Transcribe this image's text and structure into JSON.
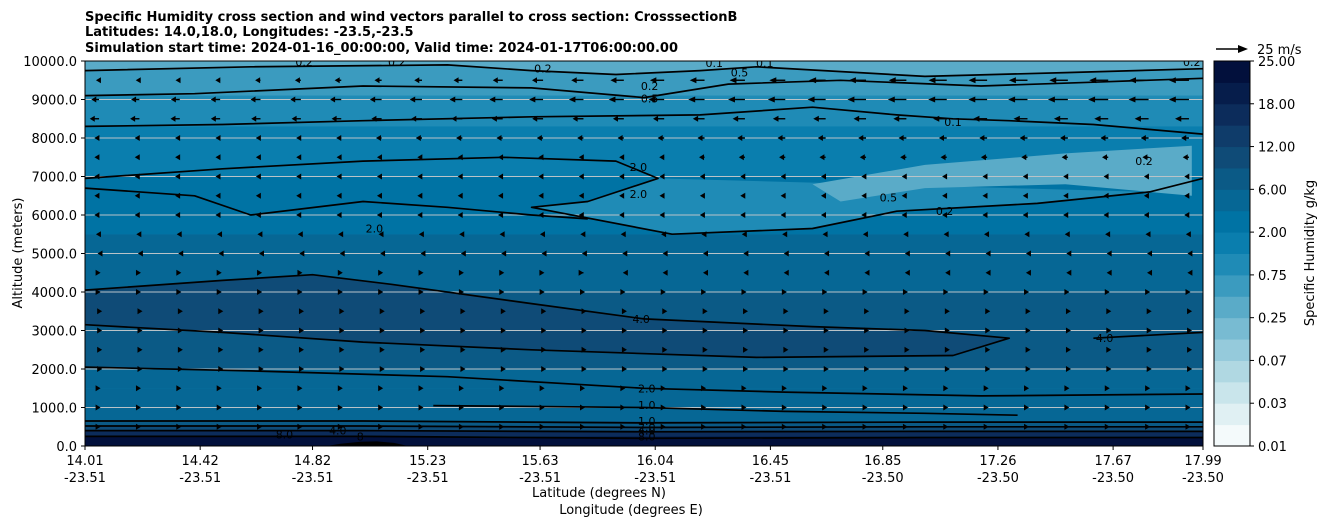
{
  "chart_data": {
    "type": "heatmap",
    "title_lines": [
      "Specific Humidity cross section and wind vectors parallel to cross section: CrosssectionB",
      "Latitudes: 14.0,18.0, Longitudes: -23.5,-23.5",
      "Simulation start time: 2024-01-16_00:00:00, Valid time: 2024-01-17T06:00:00.00"
    ],
    "xlabel_lines": [
      "Latitude (degrees N)",
      "Longitude (degrees E)"
    ],
    "ylabel": "Altitude (meters)",
    "x_ticks": [
      {
        "lat": "14.01",
        "lon": "-23.51"
      },
      {
        "lat": "14.42",
        "lon": "-23.51"
      },
      {
        "lat": "14.82",
        "lon": "-23.51"
      },
      {
        "lat": "15.23",
        "lon": "-23.51"
      },
      {
        "lat": "15.63",
        "lon": "-23.51"
      },
      {
        "lat": "16.04",
        "lon": "-23.51"
      },
      {
        "lat": "16.45",
        "lon": "-23.51"
      },
      {
        "lat": "16.85",
        "lon": "-23.50"
      },
      {
        "lat": "17.26",
        "lon": "-23.50"
      },
      {
        "lat": "17.67",
        "lon": "-23.50"
      },
      {
        "lat": "17.99",
        "lon": "-23.50"
      }
    ],
    "x_range": [
      14.01,
      17.99
    ],
    "ylim": [
      0,
      10000
    ],
    "y_ticks": [
      "0.0",
      "1000.0",
      "2000.0",
      "3000.0",
      "4000.0",
      "5000.0",
      "6000.0",
      "7000.0",
      "8000.0",
      "9000.0",
      "10000.0"
    ],
    "grid": "horizontal",
    "colorbar": {
      "label": "Specific Humidity g/kg",
      "ticks": [
        "0.01",
        "0.03",
        "0.07",
        "0.25",
        "0.75",
        "2.00",
        "6.00",
        "12.00",
        "18.00",
        "25.00"
      ],
      "colors": [
        "#f4fafb",
        "#e0f0f3",
        "#c9e5eb",
        "#b0d8e2",
        "#95cadb",
        "#78bbd2",
        "#5aabc8",
        "#3b9bbf",
        "#1f8bb6",
        "#0a7eae",
        "#0073a4",
        "#066795",
        "#0b5a86",
        "#0f4b77",
        "#0f3c6a",
        "#0c2c5b",
        "#061d4b",
        "#02103c"
      ]
    },
    "contour_levels": [
      "0.1",
      "0.2",
      "0.5",
      "1.0",
      "2.0",
      "4.0",
      "8.0"
    ],
    "contour_labels": [
      {
        "text": "0.2",
        "lat": 14.79,
        "alt": 9980
      },
      {
        "text": "0.2",
        "lat": 15.12,
        "alt": 9980
      },
      {
        "text": "0.2",
        "lat": 15.64,
        "alt": 9800
      },
      {
        "text": "0.1",
        "lat": 16.25,
        "alt": 9950
      },
      {
        "text": "0.1",
        "lat": 16.43,
        "alt": 9950
      },
      {
        "text": "0.5",
        "lat": 16.34,
        "alt": 9700
      },
      {
        "text": "0.2",
        "lat": 16.02,
        "alt": 9350
      },
      {
        "text": "0.5",
        "lat": 16.02,
        "alt": 9030
      },
      {
        "text": "0.2",
        "lat": 17.95,
        "alt": 9980
      },
      {
        "text": "0.1",
        "lat": 17.1,
        "alt": 8420
      },
      {
        "text": "0.2",
        "lat": 17.78,
        "alt": 7400
      },
      {
        "text": "2.0",
        "lat": 15.98,
        "alt": 7250
      },
      {
        "text": "2.0",
        "lat": 15.98,
        "alt": 6550
      },
      {
        "text": "0.5",
        "lat": 16.87,
        "alt": 6450
      },
      {
        "text": "0.2",
        "lat": 17.07,
        "alt": 6100
      },
      {
        "text": "2.0",
        "lat": 15.04,
        "alt": 5650
      },
      {
        "text": "4.0",
        "lat": 15.99,
        "alt": 3300
      },
      {
        "text": "4.0",
        "lat": 17.64,
        "alt": 2800
      },
      {
        "text": "2.0",
        "lat": 16.01,
        "alt": 1500
      },
      {
        "text": "1.0",
        "lat": 16.01,
        "alt": 1060
      },
      {
        "text": "1.0",
        "lat": 16.01,
        "alt": 650
      },
      {
        "text": "2.0",
        "lat": 16.01,
        "alt": 500
      },
      {
        "text": "4.0",
        "lat": 16.01,
        "alt": 400
      },
      {
        "text": "8.0",
        "lat": 16.01,
        "alt": 250
      },
      {
        "text": "8.0",
        "lat": 14.72,
        "alt": 300
      },
      {
        "text": "4.0",
        "lat": 14.91,
        "alt": 400
      },
      {
        "text": "8",
        "lat": 14.99,
        "alt": 250
      }
    ],
    "contours": [
      {
        "level": "0.2",
        "points": [
          [
            14.01,
            9750
          ],
          [
            14.6,
            9850
          ],
          [
            15.3,
            9900
          ],
          [
            15.6,
            9750
          ],
          [
            15.9,
            9650
          ],
          [
            16.2,
            9750
          ],
          [
            16.4,
            9850
          ],
          [
            17.0,
            9600
          ],
          [
            17.5,
            9700
          ],
          [
            17.99,
            9800
          ]
        ]
      },
      {
        "level": "0.5",
        "points": [
          [
            14.01,
            9100
          ],
          [
            14.4,
            9150
          ],
          [
            15.0,
            9350
          ],
          [
            15.6,
            9300
          ],
          [
            16.0,
            9050
          ],
          [
            16.3,
            9400
          ],
          [
            16.7,
            9500
          ],
          [
            17.2,
            9350
          ],
          [
            17.6,
            9450
          ],
          [
            17.99,
            9550
          ]
        ]
      },
      {
        "level": "1.0",
        "points": [
          [
            14.01,
            8300
          ],
          [
            14.5,
            8350
          ],
          [
            15.0,
            8450
          ],
          [
            15.6,
            8550
          ],
          [
            16.2,
            8600
          ],
          [
            16.6,
            8800
          ],
          [
            16.9,
            8600
          ],
          [
            17.1,
            8500
          ],
          [
            17.3,
            8450
          ],
          [
            17.6,
            8350
          ],
          [
            17.99,
            8100
          ]
        ]
      },
      {
        "level": "2.0",
        "points": [
          [
            14.01,
            6950
          ],
          [
            14.5,
            7200
          ],
          [
            15.0,
            7400
          ],
          [
            15.5,
            7500
          ],
          [
            15.9,
            7400
          ],
          [
            16.05,
            6950
          ],
          [
            15.8,
            6350
          ],
          [
            15.6,
            6200
          ],
          [
            16.1,
            5500
          ],
          [
            16.6,
            5650
          ],
          [
            16.9,
            6100
          ],
          [
            17.4,
            6300
          ],
          [
            17.8,
            6600
          ],
          [
            17.99,
            6950
          ]
        ]
      },
      {
        "level": "2.0",
        "points": [
          [
            14.01,
            6700
          ],
          [
            14.4,
            6500
          ],
          [
            14.6,
            6000
          ],
          [
            15.0,
            6350
          ],
          [
            15.3,
            6200
          ],
          [
            15.6,
            6000
          ],
          [
            15.8,
            5900
          ]
        ]
      },
      {
        "level": "4.0",
        "points": [
          [
            14.01,
            4050
          ],
          [
            14.5,
            4300
          ],
          [
            14.82,
            4450
          ],
          [
            15.1,
            4200
          ],
          [
            15.6,
            3700
          ],
          [
            16.0,
            3300
          ],
          [
            16.6,
            3100
          ],
          [
            17.0,
            3000
          ],
          [
            17.3,
            2800
          ],
          [
            17.1,
            2350
          ],
          [
            16.4,
            2300
          ],
          [
            15.6,
            2500
          ],
          [
            15.0,
            2700
          ],
          [
            14.5,
            2950
          ],
          [
            14.01,
            3150
          ]
        ]
      },
      {
        "level": "4.0",
        "points": [
          [
            17.6,
            2800
          ],
          [
            17.99,
            2950
          ]
        ]
      },
      {
        "level": "2.0",
        "points": [
          [
            14.01,
            2050
          ],
          [
            14.6,
            1950
          ],
          [
            15.3,
            1800
          ],
          [
            16.0,
            1500
          ],
          [
            16.5,
            1400
          ],
          [
            17.2,
            1300
          ],
          [
            17.99,
            1350
          ]
        ]
      },
      {
        "level": "1.0",
        "points": [
          [
            15.25,
            1050
          ],
          [
            16.0,
            1000
          ],
          [
            16.5,
            900
          ],
          [
            17.0,
            850
          ],
          [
            17.33,
            800
          ]
        ]
      },
      {
        "level": "1.0",
        "points": [
          [
            14.01,
            650
          ],
          [
            15.0,
            650
          ],
          [
            16.0,
            600
          ],
          [
            17.0,
            620
          ],
          [
            17.99,
            620
          ]
        ]
      },
      {
        "level": "2.0",
        "points": [
          [
            14.01,
            520
          ],
          [
            15.0,
            520
          ],
          [
            16.0,
            480
          ],
          [
            17.0,
            500
          ],
          [
            17.99,
            500
          ]
        ]
      },
      {
        "level": "4.0",
        "points": [
          [
            14.01,
            400
          ],
          [
            15.0,
            400
          ],
          [
            16.0,
            370
          ],
          [
            17.0,
            380
          ],
          [
            17.99,
            380
          ]
        ]
      },
      {
        "level": "8.0",
        "points": [
          [
            14.01,
            250
          ],
          [
            15.0,
            250
          ],
          [
            16.0,
            200
          ],
          [
            17.0,
            220
          ],
          [
            17.99,
            220
          ]
        ]
      }
    ],
    "wind_vectors": {
      "reference_label": "25 m/s",
      "reference_speed": 25,
      "rows": [
        {
          "alt": 9500,
          "u": [
            -2,
            -3,
            -4,
            -5,
            -7,
            -9,
            -10,
            -11,
            -12,
            -12,
            -13
          ]
        },
        {
          "alt": 9000,
          "u": [
            -5,
            -6,
            -7,
            -8,
            -9,
            -10,
            -11,
            -12,
            -12,
            -13,
            -13
          ]
        },
        {
          "alt": 8500,
          "u": [
            -6,
            -6,
            -6,
            -7,
            -7,
            -7,
            -8,
            -8,
            -9,
            -9,
            -9
          ]
        },
        {
          "alt": 8000,
          "u": [
            -3,
            -3,
            -3,
            -4,
            -4,
            -4,
            -5,
            -5,
            -5,
            -5,
            -5
          ]
        },
        {
          "alt": 7500,
          "u": [
            -3,
            -3,
            -3,
            -3,
            -3,
            -3,
            -4,
            -4,
            -4,
            -4,
            -4
          ]
        },
        {
          "alt": 7000,
          "u": [
            -3,
            -3,
            -3,
            -3,
            -3,
            -3,
            -3,
            -3,
            -3,
            -3,
            -3
          ]
        },
        {
          "alt": 6500,
          "u": [
            -3,
            -3,
            -3,
            -3,
            -3,
            -3,
            -3,
            -3,
            -3,
            -3,
            -3
          ]
        },
        {
          "alt": 6000,
          "u": [
            -3,
            -3,
            -3,
            -3,
            -3,
            -3,
            -3,
            -3,
            -3,
            -3,
            -3
          ]
        },
        {
          "alt": 5500,
          "u": [
            -2,
            -2,
            -2,
            -2,
            -2,
            -2,
            -2,
            -2,
            -2,
            -2,
            -2
          ]
        },
        {
          "alt": 5000,
          "u": [
            -1,
            -1,
            -1,
            -1,
            -1,
            -1,
            -1,
            -1,
            -1,
            -1,
            -1
          ]
        },
        {
          "alt": 4500,
          "u": [
            1,
            1,
            1,
            1,
            1,
            -1,
            -1,
            -1,
            -1,
            -1,
            -1
          ]
        },
        {
          "alt": 4000,
          "u": [
            1,
            1,
            1,
            1,
            1,
            1,
            1,
            1,
            1,
            1,
            1
          ]
        },
        {
          "alt": 3500,
          "u": [
            2,
            2,
            2,
            2,
            2,
            2,
            2,
            2,
            2,
            2,
            2
          ]
        },
        {
          "alt": 3000,
          "u": [
            2,
            2,
            2,
            2,
            2,
            2,
            2,
            2,
            2,
            2,
            2
          ]
        },
        {
          "alt": 2500,
          "u": [
            2,
            2,
            2,
            2,
            2,
            2,
            2,
            2,
            2,
            2,
            2
          ]
        },
        {
          "alt": 2000,
          "u": [
            2,
            2,
            2,
            2,
            2,
            2,
            2,
            2,
            2,
            2,
            2
          ]
        },
        {
          "alt": 1500,
          "u": [
            1,
            1,
            1,
            1,
            1,
            1,
            1,
            1,
            1,
            1,
            1
          ]
        },
        {
          "alt": 1000,
          "u": [
            1,
            1,
            1,
            1,
            1,
            1,
            1,
            1,
            1,
            1,
            1
          ]
        },
        {
          "alt": 500,
          "u": [
            1,
            1,
            1,
            1,
            1,
            1,
            1,
            1,
            1,
            1,
            1
          ]
        }
      ]
    },
    "terrain": [
      [
        14.87,
        0
      ],
      [
        14.92,
        60
      ],
      [
        14.99,
        110
      ],
      [
        15.05,
        120
      ],
      [
        15.11,
        80
      ],
      [
        15.16,
        0
      ]
    ]
  }
}
